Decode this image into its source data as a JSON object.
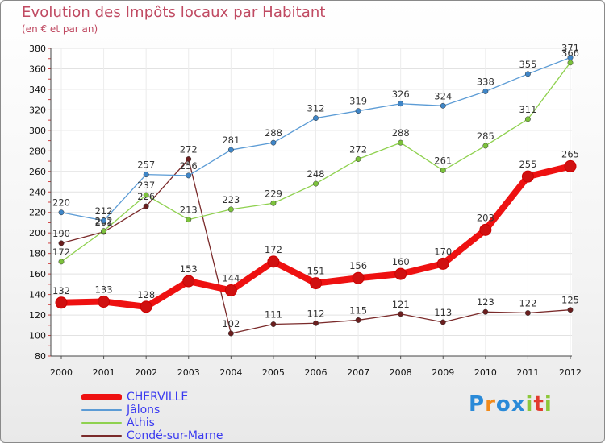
{
  "title": "Evolution des Impôts locaux par Habitant",
  "subtitle": "(en € et par an)",
  "logo": {
    "text": "Proxiti",
    "letters": [
      {
        "ch": "P",
        "color": "#2a8ad8"
      },
      {
        "ch": "r",
        "color": "#f28a1a"
      },
      {
        "ch": "o",
        "color": "#2a8ad8"
      },
      {
        "ch": "x",
        "color": "#2a8ad8"
      },
      {
        "ch": "i",
        "color": "#8cc83a"
      },
      {
        "ch": "t",
        "color": "#e23b2e"
      },
      {
        "ch": "i",
        "color": "#8cc83a"
      }
    ]
  },
  "chart_data": {
    "type": "line",
    "title": "Evolution des Impôts locaux par Habitant",
    "subtitle": "(en € et par an)",
    "xlabel": "",
    "ylabel": "",
    "x": [
      "2000",
      "2001",
      "2002",
      "2003",
      "2004",
      "2005",
      "2006",
      "2007",
      "2008",
      "2009",
      "2010",
      "2011",
      "2012"
    ],
    "ylim": [
      80,
      380
    ],
    "yticks": [
      80,
      100,
      120,
      140,
      160,
      180,
      200,
      220,
      240,
      260,
      280,
      300,
      320,
      340,
      360,
      380
    ],
    "grid": true,
    "legend_position": "bottom-left",
    "series": [
      {
        "name": "Condé-sur-Marne",
        "color": "#7a2a2a",
        "values": [
          190,
          201,
          226,
          272,
          102,
          111,
          112,
          115,
          121,
          113,
          123,
          122,
          125
        ]
      },
      {
        "name": "Athis",
        "color": "#8fd14f",
        "values": [
          172,
          202,
          237,
          213,
          223,
          229,
          248,
          272,
          288,
          261,
          285,
          311,
          366
        ]
      },
      {
        "name": "Jâlons",
        "color": "#5b9bd5",
        "values": [
          220,
          212,
          257,
          256,
          281,
          288,
          312,
          319,
          326,
          324,
          338,
          355,
          371
        ]
      },
      {
        "name": "CHERVILLE",
        "color": "#ee1111",
        "values": [
          132,
          133,
          128,
          153,
          144,
          172,
          151,
          156,
          160,
          170,
          203,
          255,
          265
        ]
      }
    ],
    "legend_order": [
      "CHERVILLE",
      "Jâlons",
      "Athis",
      "Condé-sur-Marne"
    ]
  }
}
